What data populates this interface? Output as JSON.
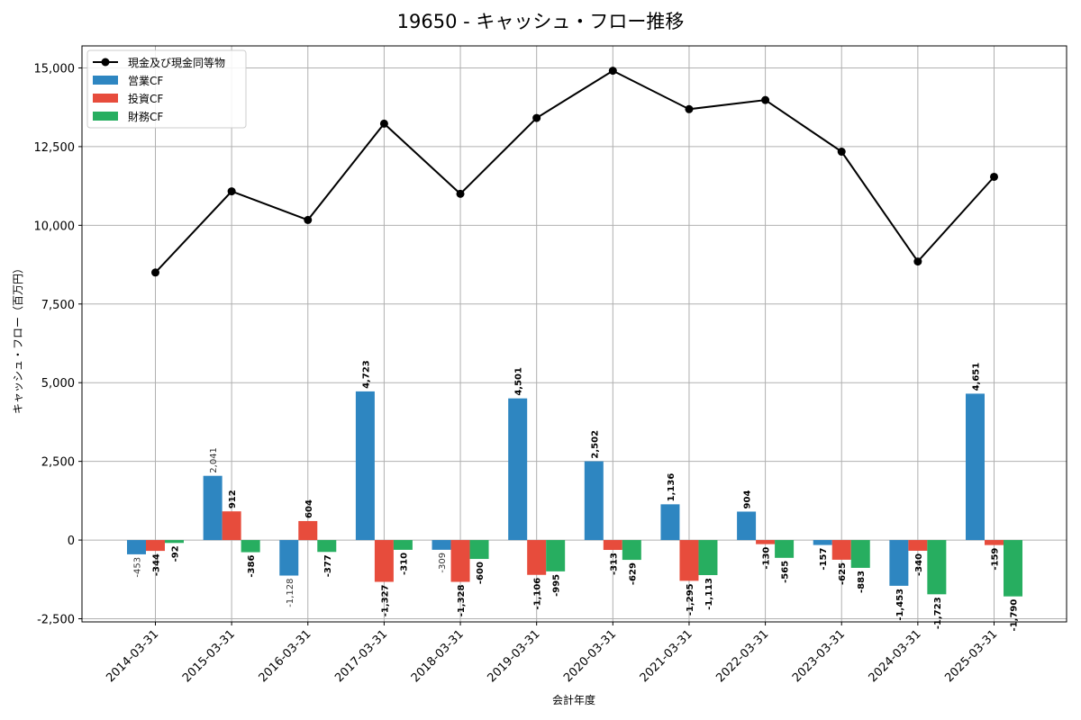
{
  "chart_data": {
    "type": "bar",
    "title": "19650 - キャッシュ・フロー推移",
    "xlabel": "会計年度",
    "ylabel": "キャッシュ・フロー（百万円）",
    "ylim": [
      -2600,
      15700
    ],
    "yticks": [
      -2500,
      0,
      2500,
      5000,
      7500,
      10000,
      12500,
      15000
    ],
    "ytick_labels": [
      "-2,500",
      "0",
      "2,500",
      "5,000",
      "7,500",
      "10,000",
      "12,500",
      "15,000"
    ],
    "grid": true,
    "legend_position": "top-left",
    "categories": [
      "2014-03-31",
      "2015-03-31",
      "2016-03-31",
      "2017-03-31",
      "2018-03-31",
      "2019-03-31",
      "2020-03-31",
      "2021-03-31",
      "2022-03-31",
      "2023-03-31",
      "2024-03-31",
      "2025-03-31"
    ],
    "line_series": {
      "name": "現金及び現金同等物",
      "color": "#000000",
      "values": [
        8500,
        11080,
        10170,
        13230,
        11000,
        13410,
        14910,
        13690,
        13980,
        12340,
        8850,
        11540
      ]
    },
    "series": [
      {
        "name": "営業CF",
        "color": "#2e86c1",
        "values": [
          -453,
          2041,
          -1128,
          4723,
          -309,
          4501,
          2502,
          1136,
          904,
          -157,
          -1453,
          4651
        ],
        "labels": [
          "-453",
          "2,041",
          "-1,128",
          "4,723",
          "-309",
          "4,501",
          "2,502",
          "1,136",
          "904",
          "-157",
          "-1,453",
          "4,651"
        ]
      },
      {
        "name": "投資CF",
        "color": "#e74c3c",
        "values": [
          -344,
          912,
          604,
          -1327,
          -1328,
          -1106,
          -313,
          -1295,
          -130,
          -625,
          -340,
          -159
        ],
        "labels": [
          "-344",
          "912",
          "604",
          "-1,327",
          "-1,328",
          "-1,106",
          "-313",
          "-1,295",
          "-130",
          "-625",
          "-340",
          "-159"
        ]
      },
      {
        "name": "財務CF",
        "color": "#27ae60",
        "values": [
          -92,
          -386,
          -377,
          -310,
          -600,
          -995,
          -629,
          -1113,
          -565,
          -883,
          -1723,
          -1790
        ],
        "labels": [
          "-92",
          "-386",
          "-377",
          "-310",
          "-600",
          "-995",
          "-629",
          "-1,113",
          "-565",
          "-883",
          "-1,723",
          "-1,790"
        ]
      }
    ]
  }
}
